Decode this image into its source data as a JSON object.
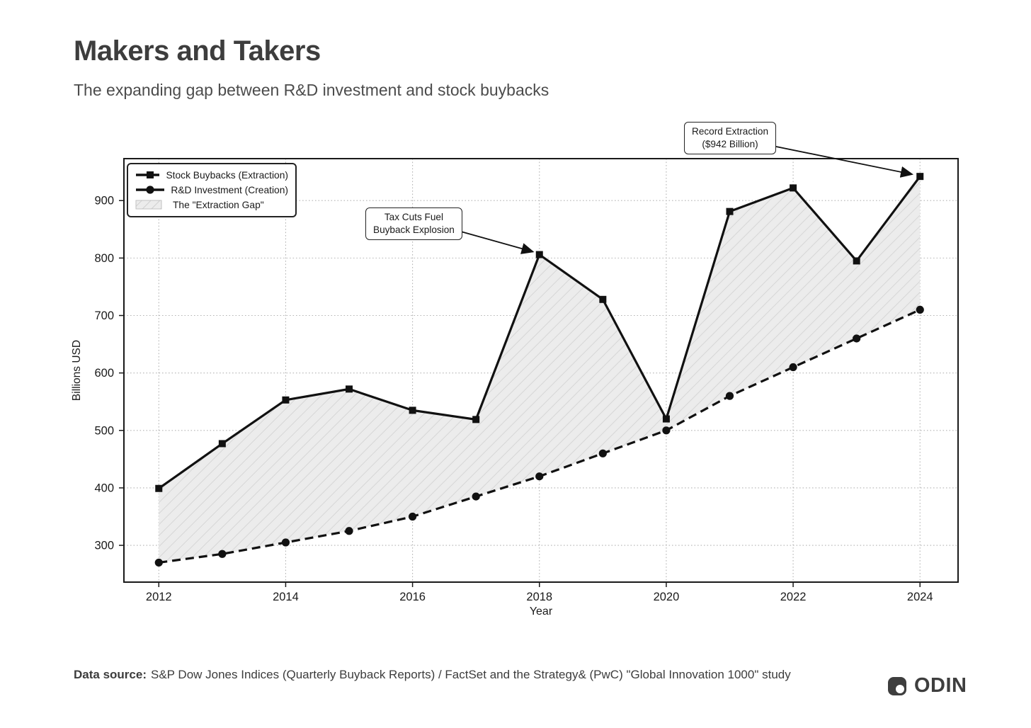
{
  "header": {
    "title": "Makers and Takers",
    "subtitle": "The expanding gap between R&D investment and stock buybacks"
  },
  "chart_data": {
    "type": "line",
    "x": [
      2012,
      2013,
      2014,
      2015,
      2016,
      2017,
      2018,
      2019,
      2020,
      2021,
      2022,
      2023,
      2024
    ],
    "series": [
      {
        "name": "Stock Buybacks (Extraction)",
        "marker": "square",
        "line_style": "solid",
        "values": [
          399,
          477,
          553,
          572,
          535,
          519,
          806,
          728,
          520,
          881,
          922,
          795,
          942
        ]
      },
      {
        "name": "R&D Investment (Creation)",
        "marker": "circle",
        "line_style": "dashed",
        "values": [
          270,
          285,
          305,
          325,
          350,
          385,
          420,
          460,
          500,
          560,
          610,
          660,
          710
        ]
      }
    ],
    "gap_label": "The \"Extraction Gap\"",
    "xlabel": "Year",
    "ylabel": "Billions USD",
    "x_ticks": [
      2012,
      2014,
      2016,
      2018,
      2020,
      2022,
      2024
    ],
    "y_ticks": [
      300,
      400,
      500,
      600,
      700,
      800,
      900
    ],
    "xlim": [
      2011.45,
      2024.6
    ],
    "ylim": [
      236,
      973
    ],
    "grid": "dotted",
    "legend_position": "upper-left",
    "annotations": [
      {
        "label": "Tax Cuts Fuel\nBuyback Explosion",
        "target_x": 2018,
        "target_y": 806
      },
      {
        "label": "Record Extraction\n($942 Billion)",
        "target_x": 2024,
        "target_y": 942
      }
    ],
    "colors": {
      "line": "#111111",
      "gap_fill": "#ececec",
      "gap_hatch": "#d6d6d6",
      "grid": "#b5b5b5",
      "frame": "#1a1a1a"
    }
  },
  "footer": {
    "source_label": "Data source:",
    "source_text": "S&P Dow Jones Indices (Quarterly Buyback Reports) / FactSet and the Strategy& (PwC) \"Global Innovation 1000\" study",
    "logo_text": "ODIN"
  }
}
